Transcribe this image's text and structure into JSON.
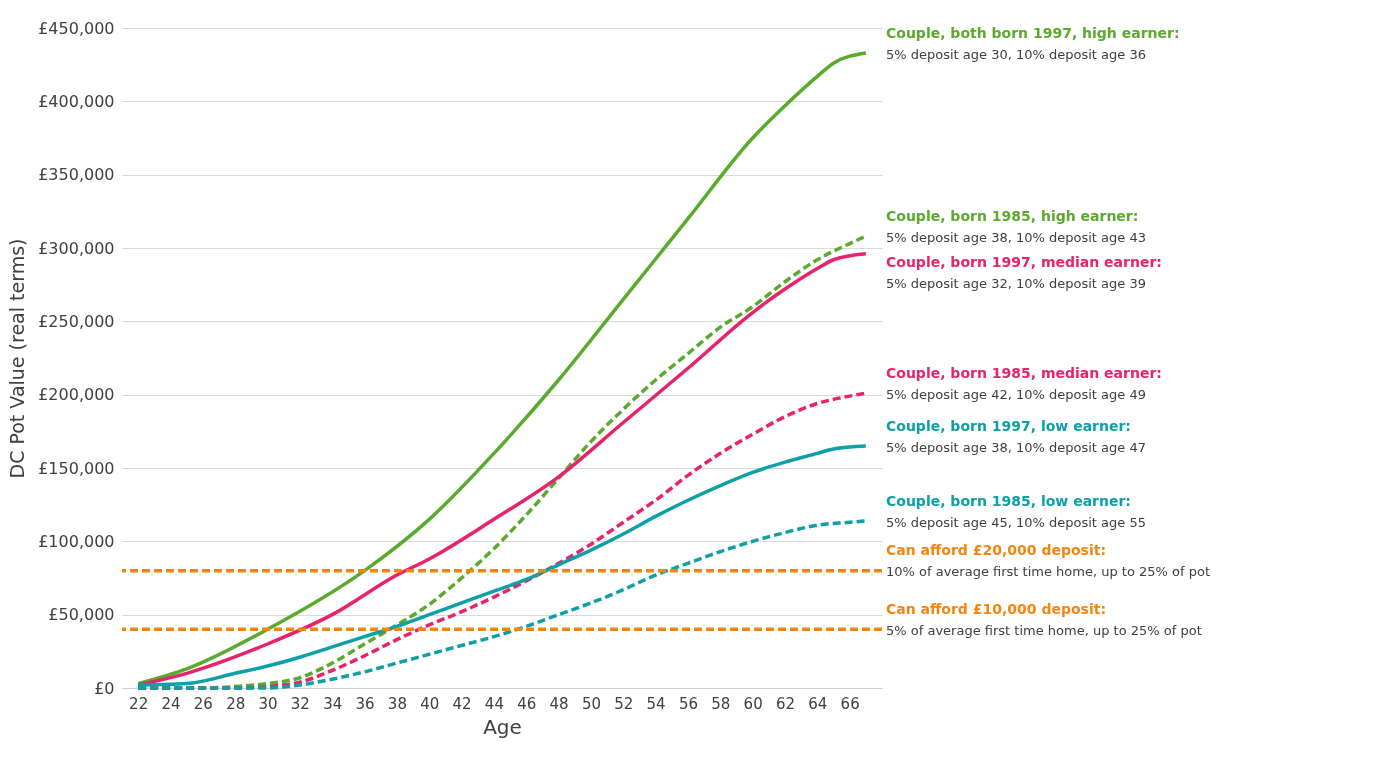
{
  "chart_data": {
    "type": "line",
    "xlabel": "Age",
    "ylabel": "DC Pot Value (real terms)",
    "xlim": [
      21,
      68
    ],
    "xticks": [
      22,
      24,
      26,
      28,
      30,
      32,
      34,
      36,
      38,
      40,
      42,
      44,
      46,
      48,
      50,
      52,
      54,
      56,
      58,
      60,
      62,
      64,
      66
    ],
    "ylim": [
      0,
      450000
    ],
    "yticks": [
      {
        "value": 0,
        "label": "£0"
      },
      {
        "value": 50000,
        "label": "£50,000"
      },
      {
        "value": 100000,
        "label": "£100,000"
      },
      {
        "value": 150000,
        "label": "£150,000"
      },
      {
        "value": 200000,
        "label": "£200,000"
      },
      {
        "value": 250000,
        "label": "£250,000"
      },
      {
        "value": 300000,
        "label": "£300,000"
      },
      {
        "value": 350000,
        "label": "£350,000"
      },
      {
        "value": 400000,
        "label": "£400,000"
      },
      {
        "value": 450000,
        "label": "£450,000"
      }
    ],
    "grid": "y",
    "legend": false,
    "series": [
      {
        "name": "Couple, both born 1997, high earner:",
        "color": "#5aaa2d",
        "line_style": "solid",
        "x": [
          22,
          25,
          30,
          36,
          40,
          44,
          48,
          52,
          56,
          60,
          62,
          64,
          65,
          67
        ],
        "values": [
          3000,
          13000,
          40000,
          80000,
          115000,
          160000,
          210000,
          265000,
          320000,
          375000,
          397000,
          417000,
          426000,
          433000
        ]
      },
      {
        "name": "Couple, born 1985, high earner:",
        "color": "#5aaa2d",
        "line_style": "dashed",
        "x": [
          22,
          26,
          28,
          30,
          32,
          34,
          36,
          38,
          40,
          42,
          44,
          46,
          48,
          50,
          52,
          54,
          56,
          58,
          60,
          62,
          64,
          66,
          67
        ],
        "values": [
          0,
          0,
          1000,
          3000,
          7000,
          17000,
          30000,
          43000,
          57000,
          75000,
          95000,
          118000,
          143000,
          168000,
          190000,
          210000,
          228000,
          246000,
          260000,
          277000,
          292000,
          303000,
          308000
        ]
      },
      {
        "name": "Couple, born 1997, median earner:",
        "color": "#e8236b",
        "line_style": "solid",
        "x": [
          22,
          25,
          30,
          34,
          38,
          40,
          44,
          48,
          52,
          56,
          60,
          62,
          64,
          65,
          67
        ],
        "values": [
          2000,
          10000,
          30000,
          50000,
          77000,
          88000,
          115000,
          144000,
          181000,
          218000,
          256000,
          272000,
          286000,
          292000,
          296000
        ]
      },
      {
        "name": "Couple, born 1985, median earner:",
        "color": "#e8236b",
        "line_style": "dashed",
        "x": [
          22,
          28,
          30,
          32,
          34,
          36,
          38,
          40,
          42,
          44,
          46,
          48,
          50,
          52,
          54,
          56,
          58,
          60,
          62,
          64,
          66,
          67
        ],
        "values": [
          0,
          0,
          1000,
          4000,
          12000,
          22000,
          33000,
          43000,
          52000,
          62000,
          73000,
          85000,
          98000,
          113000,
          128000,
          145000,
          160000,
          173000,
          185000,
          194000,
          199000,
          201000
        ]
      },
      {
        "name": "Couple, born 1997, low earner:",
        "color": "#0da0a6",
        "line_style": "solid",
        "x": [
          22,
          25,
          28,
          30,
          32,
          34,
          36,
          38,
          40,
          42,
          44,
          46,
          48,
          50,
          52,
          54,
          56,
          58,
          60,
          62,
          64,
          65,
          67
        ],
        "values": [
          2000,
          3000,
          10000,
          15000,
          21000,
          28000,
          35000,
          42000,
          50000,
          58000,
          66000,
          74000,
          84000,
          94000,
          105000,
          117000,
          128000,
          138000,
          147000,
          154000,
          160000,
          163000,
          165000
        ]
      },
      {
        "name": "Couple, born 1985, low earner:",
        "color": "#0da0a6",
        "line_style": "dashed",
        "x": [
          22,
          30,
          32,
          34,
          36,
          38,
          40,
          42,
          44,
          46,
          48,
          50,
          52,
          54,
          56,
          58,
          60,
          62,
          64,
          66,
          67
        ],
        "values": [
          0,
          0,
          2000,
          6000,
          11000,
          17000,
          23000,
          29000,
          35000,
          42000,
          50000,
          58000,
          67000,
          77000,
          85000,
          93000,
          100000,
          106000,
          111000,
          113000,
          114000
        ]
      }
    ],
    "ref_lines": [
      {
        "axis": "y",
        "value": 80000,
        "label": "Can afford £20,000 deposit:",
        "color": "#f5850f",
        "line_style": "dashed"
      },
      {
        "axis": "y",
        "value": 40000,
        "label": "Can afford £10,000 deposit:",
        "color": "#f5850f",
        "line_style": "dashed"
      }
    ],
    "annotations": [
      "5% deposit age 30, 10% deposit age 36",
      "5% deposit age 38, 10% deposit age 43",
      "5% deposit age 32, 10% deposit age 39",
      "5% deposit age 42, 10% deposit age 49",
      "5% deposit age 38, 10% deposit age 47",
      "5% deposit age 45, 10% deposit age 55",
      "10% of average first time home, up to 25% of pot",
      "5% of average first time home, up to 25% of pot"
    ]
  }
}
